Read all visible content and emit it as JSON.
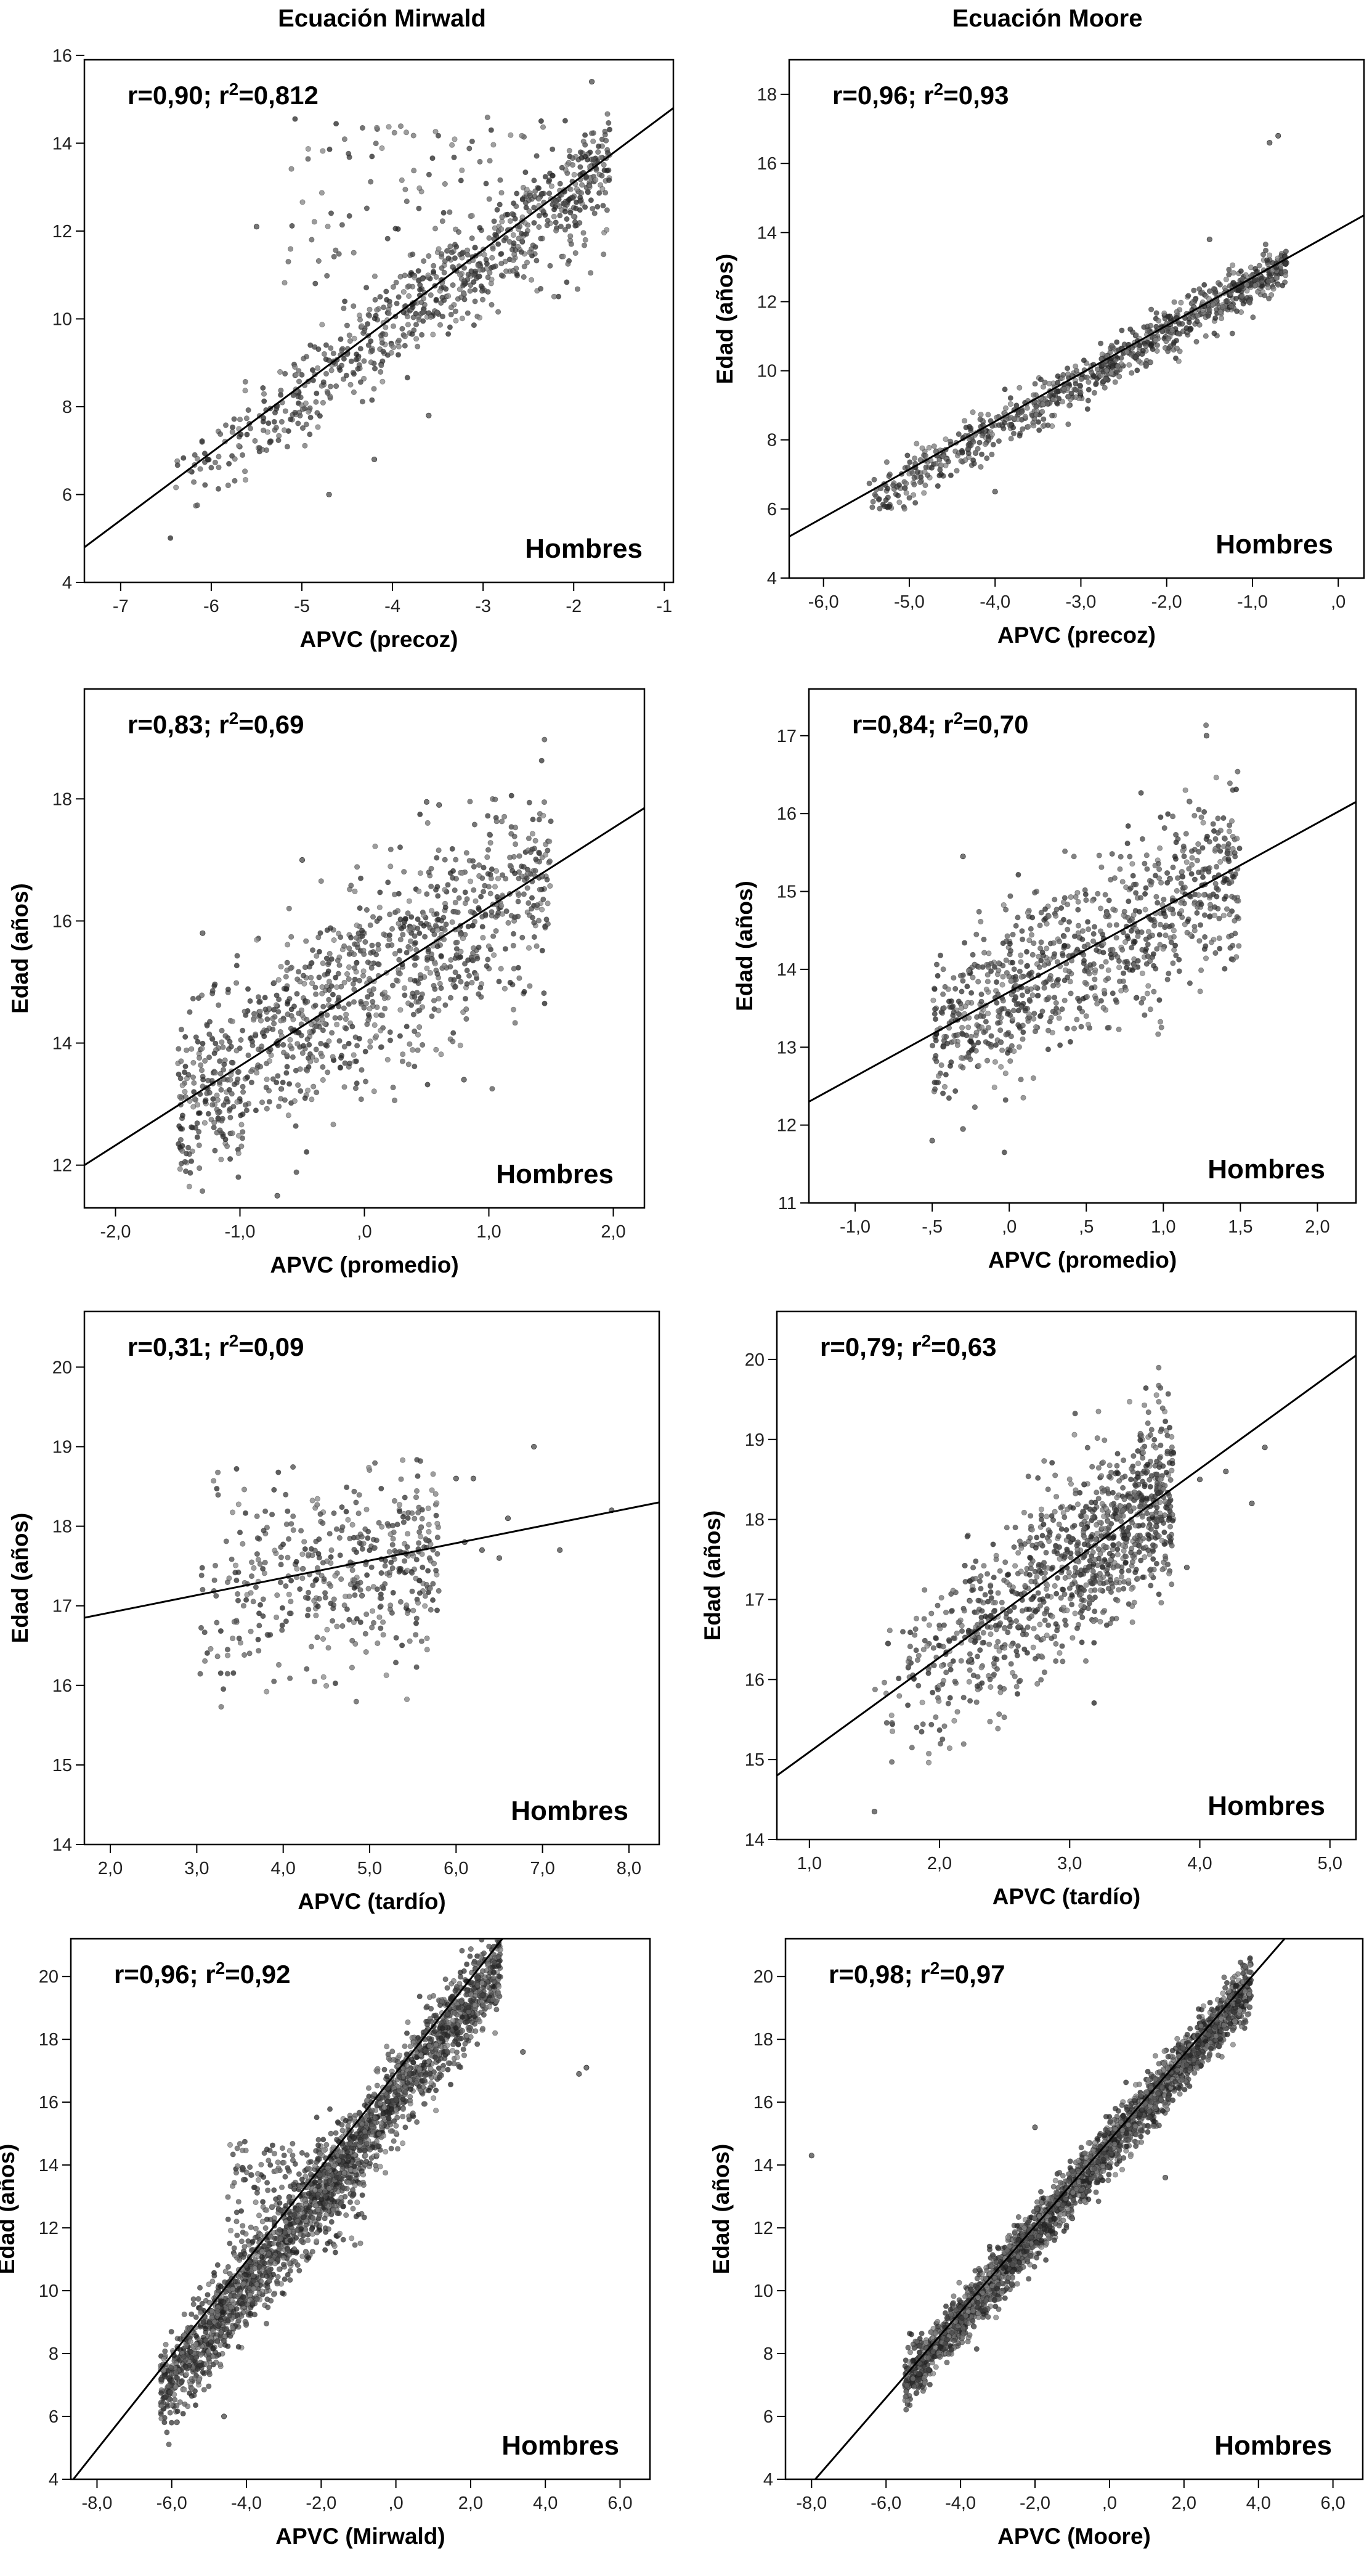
{
  "figure": {
    "col_titles": [
      "Ecuación Mirwald",
      "Ecuación Moore"
    ]
  },
  "chart_data": [
    {
      "type": "scatter",
      "seed": 11,
      "n": 900,
      "stat": "r=0,90; r²=0,812",
      "group_label": "Hombres",
      "xlabel": "APVC (precoz)",
      "ylabel": "",
      "xlim": [
        -7.4,
        -0.9
      ],
      "ylim": [
        4,
        15.9
      ],
      "xticks": [
        -7,
        -6,
        -5,
        -4,
        -3,
        -2,
        -1
      ],
      "xtick_labels": [
        "-7",
        "-6",
        "-5",
        "-4",
        "-3",
        "-2",
        "-1"
      ],
      "yticks": [
        4,
        6,
        8,
        10,
        12,
        14,
        16
      ],
      "ytick_labels": [
        "4",
        "6",
        "8",
        "10",
        "12",
        "14",
        "16"
      ],
      "fit_line": [
        [
          -7.4,
          4.8
        ],
        [
          -0.9,
          14.8
        ]
      ],
      "clusters": [
        {
          "x_range": [
            -6.5,
            -1.6
          ],
          "x_bias": 1.6,
          "slope": 1.53,
          "intercept": 15.95,
          "sd": 0.55,
          "frac": 0.85
        },
        {
          "x_range": [
            -5.2,
            -1.6
          ],
          "x_bias": 1.0,
          "y_range": [
            10.5,
            14.6
          ],
          "frac": 0.15
        }
      ],
      "outliers": [
        [
          -5.5,
          12.1
        ],
        [
          -4.7,
          6.0
        ],
        [
          -3.6,
          7.8
        ],
        [
          -4.2,
          6.8
        ],
        [
          -1.8,
          15.4
        ]
      ],
      "grid": false,
      "legend": "none"
    },
    {
      "type": "scatter",
      "seed": 23,
      "n": 900,
      "stat": "r=0,96; r²=0,93",
      "group_label": "Hombres",
      "xlabel": "APVC (precoz)",
      "ylabel": "Edad (años)",
      "xlim": [
        -6.4,
        0.3
      ],
      "ylim": [
        4,
        19
      ],
      "xticks": [
        -6,
        -5,
        -4,
        -3,
        -2,
        -1,
        0
      ],
      "xtick_labels": [
        "-6,0",
        "-5,0",
        "-4,0",
        "-3,0",
        "-2,0",
        "-1,0",
        ",0"
      ],
      "yticks": [
        4,
        6,
        8,
        10,
        12,
        14,
        16,
        18
      ],
      "ytick_labels": [
        "4",
        "6",
        "8",
        "10",
        "12",
        "14",
        "16",
        "18"
      ],
      "fit_line": [
        [
          -6.4,
          5.2
        ],
        [
          0.3,
          14.5
        ]
      ],
      "clusters": [
        {
          "x_range": [
            -5.5,
            -0.6
          ],
          "x_bias": 1.4,
          "slope": 1.4,
          "intercept": 13.9,
          "sd": 0.32,
          "frac": 1.0
        }
      ],
      "outliers": [
        [
          -0.8,
          16.6
        ],
        [
          -0.7,
          16.8
        ],
        [
          -1.5,
          13.8
        ],
        [
          -4.0,
          6.5
        ]
      ],
      "grid": false,
      "legend": "none"
    },
    {
      "type": "scatter",
      "seed": 37,
      "n": 1100,
      "stat": "r=0,83; r²=0,69",
      "group_label": "Hombres",
      "xlabel": "APVC (promedio)",
      "ylabel": "Edad (años)",
      "xlim": [
        -2.25,
        2.25
      ],
      "ylim": [
        11.3,
        19.8
      ],
      "xticks": [
        -2,
        -1,
        0,
        1,
        2
      ],
      "xtick_labels": [
        "-2,0",
        "-1,0",
        ",0",
        "1,0",
        "2,0"
      ],
      "yticks": [
        12,
        14,
        16,
        18
      ],
      "ytick_labels": [
        "12",
        "14",
        "16",
        "18"
      ],
      "fit_line": [
        [
          -2.25,
          12.0
        ],
        [
          2.25,
          17.85
        ]
      ],
      "clusters": [
        {
          "x_range": [
            -1.5,
            1.5
          ],
          "x_bias": 1.0,
          "slope": 1.3,
          "intercept": 14.9,
          "sd": 0.8,
          "frac": 1.0
        }
      ],
      "outliers": [
        [
          -0.5,
          17.0
        ],
        [
          0.5,
          17.95
        ],
        [
          0.6,
          17.9
        ],
        [
          -1.3,
          15.8
        ],
        [
          -0.7,
          11.5
        ],
        [
          0.8,
          13.4
        ]
      ],
      "grid": false,
      "legend": "none"
    },
    {
      "type": "scatter",
      "seed": 41,
      "n": 900,
      "stat": "r=0,84; r²=0,70",
      "group_label": "Hombres",
      "xlabel": "APVC (promedio)",
      "ylabel": "Edad (años)",
      "xlim": [
        -1.3,
        2.25
      ],
      "ylim": [
        11,
        17.6
      ],
      "xticks": [
        -1,
        -0.5,
        0,
        0.5,
        1,
        1.5,
        2
      ],
      "xtick_labels": [
        "-1,0",
        "-,5",
        ",0",
        ",5",
        "1,0",
        "1,5",
        "2,0"
      ],
      "yticks": [
        11,
        12,
        13,
        14,
        15,
        16,
        17
      ],
      "ytick_labels": [
        "11",
        "12",
        "13",
        "14",
        "15",
        "16",
        "17"
      ],
      "fit_line": [
        [
          -1.3,
          12.3
        ],
        [
          2.25,
          16.15
        ]
      ],
      "clusters": [
        {
          "x_range": [
            -0.5,
            1.5
          ],
          "x_bias": 1.0,
          "slope": 1.06,
          "intercept": 13.7,
          "sd": 0.55,
          "frac": 1.0
        }
      ],
      "outliers": [
        [
          1.28,
          17.0
        ],
        [
          -0.5,
          11.8
        ],
        [
          -0.3,
          15.45
        ],
        [
          -0.3,
          11.95
        ]
      ],
      "grid": false,
      "legend": "none"
    },
    {
      "type": "scatter",
      "seed": 53,
      "n": 450,
      "stat": "r=0,31; r²=0,09",
      "group_label": "Hombres",
      "xlabel": "APVC (tardío)",
      "ylabel": "Edad (años)",
      "xlim": [
        1.7,
        8.35
      ],
      "ylim": [
        14,
        20.7
      ],
      "xticks": [
        2,
        3,
        4,
        5,
        6,
        7,
        8
      ],
      "xtick_labels": [
        "2,0",
        "3,0",
        "4,0",
        "5,0",
        "6,0",
        "7,0",
        "8,0"
      ],
      "yticks": [
        14,
        15,
        16,
        17,
        18,
        19,
        20
      ],
      "ytick_labels": [
        "14",
        "15",
        "16",
        "17",
        "18",
        "19",
        "20"
      ],
      "fit_line": [
        [
          1.7,
          16.85
        ],
        [
          8.35,
          18.3
        ]
      ],
      "clusters": [
        {
          "x_range": [
            3.0,
            5.8
          ],
          "x_bias": 1.5,
          "slope": 0.22,
          "intercept": 16.4,
          "sd": 0.6,
          "frac": 1.0
        }
      ],
      "outliers": [
        [
          6.0,
          18.6
        ],
        [
          6.2,
          18.6
        ],
        [
          6.3,
          17.7
        ],
        [
          6.5,
          17.6
        ],
        [
          6.9,
          19.0
        ],
        [
          7.2,
          17.7
        ],
        [
          7.8,
          18.2
        ],
        [
          6.1,
          17.8
        ],
        [
          6.6,
          18.1
        ]
      ],
      "grid": false,
      "legend": "none"
    },
    {
      "type": "scatter",
      "seed": 67,
      "n": 1100,
      "stat": "r=0,79; r²=0,63",
      "group_label": "Hombres",
      "xlabel": "APVC (tardío)",
      "ylabel": "Edad (años)",
      "xlim": [
        0.75,
        5.2
      ],
      "ylim": [
        14,
        20.6
      ],
      "xticks": [
        1,
        2,
        3,
        4,
        5
      ],
      "xtick_labels": [
        "1,0",
        "2,0",
        "3,0",
        "4,0",
        "5,0"
      ],
      "yticks": [
        14,
        15,
        16,
        17,
        18,
        19,
        20
      ],
      "ytick_labels": [
        "14",
        "15",
        "16",
        "17",
        "18",
        "19",
        "20"
      ],
      "fit_line": [
        [
          0.75,
          14.8
        ],
        [
          5.2,
          20.05
        ]
      ],
      "clusters": [
        {
          "x_range": [
            1.5,
            3.8
          ],
          "x_bias": 1.7,
          "slope": 1.18,
          "intercept": 13.9,
          "sd": 0.55,
          "frac": 1.0
        }
      ],
      "outliers": [
        [
          4.5,
          18.9
        ],
        [
          4.4,
          18.2
        ],
        [
          4.2,
          18.6
        ],
        [
          4.0,
          18.5
        ],
        [
          3.9,
          17.4
        ],
        [
          1.5,
          14.35
        ]
      ],
      "grid": false,
      "legend": "none"
    },
    {
      "type": "scatter",
      "seed": 79,
      "n": 2600,
      "stat": "r=0,96; r²=0,92",
      "group_label": "Hombres",
      "xlabel": "APVC (Mirwald)",
      "ylabel": "Edad (años)",
      "xlim": [
        -8.7,
        6.8
      ],
      "ylim": [
        4,
        21.2
      ],
      "xticks": [
        -8,
        -6,
        -4,
        -2,
        0,
        2,
        4,
        6
      ],
      "xtick_labels": [
        "-8,0",
        "-6,0",
        "-4,0",
        "-2,0",
        ",0",
        "2,0",
        "4,0",
        "6,0"
      ],
      "yticks": [
        4,
        6,
        8,
        10,
        12,
        14,
        16,
        18,
        20
      ],
      "ytick_labels": [
        "4",
        "6",
        "8",
        "10",
        "12",
        "14",
        "16",
        "18",
        "20"
      ],
      "fit_line": [
        [
          -8.7,
          3.9
        ],
        [
          2.85,
          21.2
        ]
      ],
      "clusters": [
        {
          "x_range": [
            -6.3,
            2.8
          ],
          "x_bias": 1.0,
          "slope": 1.5,
          "intercept": 16.2,
          "sd": 0.7,
          "frac": 0.92
        },
        {
          "x_range": [
            -4.5,
            -0.8
          ],
          "x_bias": 1.0,
          "y_range": [
            11.0,
            14.8
          ],
          "frac": 0.08
        }
      ],
      "outliers": [
        [
          5.1,
          17.1
        ],
        [
          4.9,
          16.9
        ],
        [
          3.4,
          17.6
        ],
        [
          -4.6,
          6.0
        ]
      ],
      "grid": false,
      "legend": "none"
    },
    {
      "type": "scatter",
      "seed": 97,
      "n": 2600,
      "stat": "r=0,98; r²=0,97",
      "group_label": "Hombres",
      "xlabel": "APVC (Moore)",
      "ylabel": "Edad (años)",
      "xlim": [
        -8.7,
        6.8
      ],
      "ylim": [
        4,
        21.2
      ],
      "xticks": [
        -8,
        -6,
        -4,
        -2,
        0,
        2,
        4,
        6
      ],
      "xtick_labels": [
        "-8,0",
        "-6,0",
        "-4,0",
        "-2,0",
        ",0",
        "2,0",
        "4,0",
        "6,0"
      ],
      "yticks": [
        4,
        6,
        8,
        10,
        12,
        14,
        16,
        18,
        20
      ],
      "ytick_labels": [
        "4",
        "6",
        "8",
        "10",
        "12",
        "14",
        "16",
        "18",
        "20"
      ],
      "fit_line": [
        [
          -7.9,
          4.0
        ],
        [
          4.7,
          21.2
        ]
      ],
      "clusters": [
        {
          "x_range": [
            -5.5,
            3.8
          ],
          "x_bias": 1.0,
          "slope": 1.36,
          "intercept": 14.55,
          "sd": 0.42,
          "frac": 1.0
        }
      ],
      "outliers": [
        [
          -8.0,
          14.3
        ],
        [
          -2.0,
          15.2
        ],
        [
          -1.0,
          12.3
        ],
        [
          1.5,
          13.6
        ]
      ],
      "grid": false,
      "legend": "none"
    }
  ]
}
